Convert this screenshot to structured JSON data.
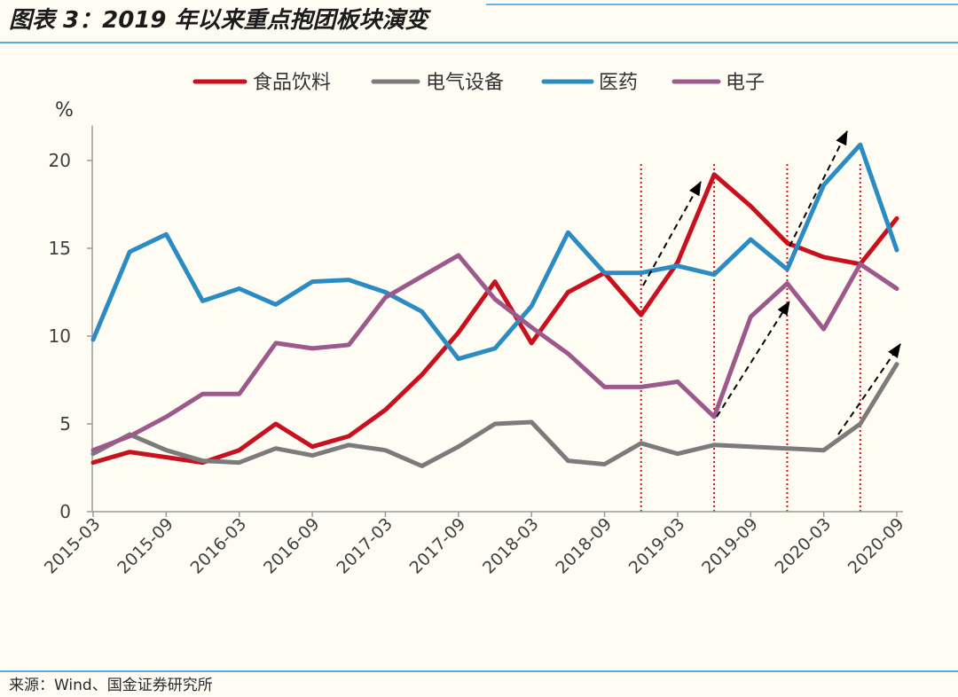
{
  "chart_data": {
    "type": "line",
    "title": "图表 3：2019 年以来重点抱团板块演变",
    "xlabel": "",
    "ylabel": "%",
    "ylim": [
      0,
      22
    ],
    "yticks": [
      0,
      5,
      10,
      15,
      20
    ],
    "x": [
      "2015-03",
      "2015-06",
      "2015-09",
      "2015-12",
      "2016-03",
      "2016-06",
      "2016-09",
      "2016-12",
      "2017-03",
      "2017-06",
      "2017-09",
      "2017-12",
      "2018-03",
      "2018-06",
      "2018-09",
      "2018-12",
      "2019-03",
      "2019-06",
      "2019-09",
      "2019-12",
      "2020-03",
      "2020-06",
      "2020-09"
    ],
    "x_tick_labels": [
      "2015-03",
      "2015-09",
      "2016-03",
      "2016-09",
      "2017-03",
      "2017-09",
      "2018-03",
      "2018-09",
      "2019-03",
      "2019-09",
      "2020-03",
      "2020-09"
    ],
    "legend_position": "top",
    "grid": false,
    "series": [
      {
        "name": "食品饮料",
        "color": "#c8101e",
        "values": [
          2.8,
          3.4,
          3.1,
          2.8,
          3.5,
          5.0,
          3.7,
          4.3,
          5.8,
          7.8,
          10.2,
          13.1,
          9.6,
          12.5,
          13.6,
          11.2,
          14.2,
          19.2,
          17.4,
          15.3,
          14.5,
          14.1,
          16.7
        ]
      },
      {
        "name": "电气设备",
        "color": "#7b7b7b",
        "values": [
          3.3,
          4.4,
          3.5,
          2.9,
          2.8,
          3.6,
          3.2,
          3.8,
          3.5,
          2.6,
          3.7,
          5.0,
          5.1,
          2.9,
          2.7,
          3.9,
          3.3,
          3.8,
          3.7,
          3.6,
          3.5,
          5.0,
          8.4
        ]
      },
      {
        "name": "医药",
        "color": "#2b8cc4",
        "values": [
          9.8,
          14.8,
          15.8,
          12.0,
          12.7,
          11.8,
          13.1,
          13.2,
          12.5,
          11.4,
          8.7,
          9.3,
          11.7,
          15.9,
          13.6,
          13.6,
          14.0,
          13.5,
          15.5,
          13.8,
          18.6,
          20.9,
          14.9
        ]
      },
      {
        "name": "电子",
        "color": "#9b5a8b",
        "values": [
          3.5,
          4.3,
          5.4,
          6.7,
          6.7,
          9.6,
          9.3,
          9.5,
          12.2,
          13.4,
          14.6,
          12.1,
          10.5,
          9.0,
          7.1,
          7.1,
          7.4,
          5.4,
          11.1,
          13.0,
          10.4,
          14.1,
          12.7
        ]
      }
    ],
    "reference_lines": {
      "color": "#d8101e",
      "x": [
        "2018-12",
        "2019-06",
        "2019-12",
        "2020-06"
      ]
    }
  },
  "footer": {
    "source": "来源：Wind、国金证券研究所"
  }
}
